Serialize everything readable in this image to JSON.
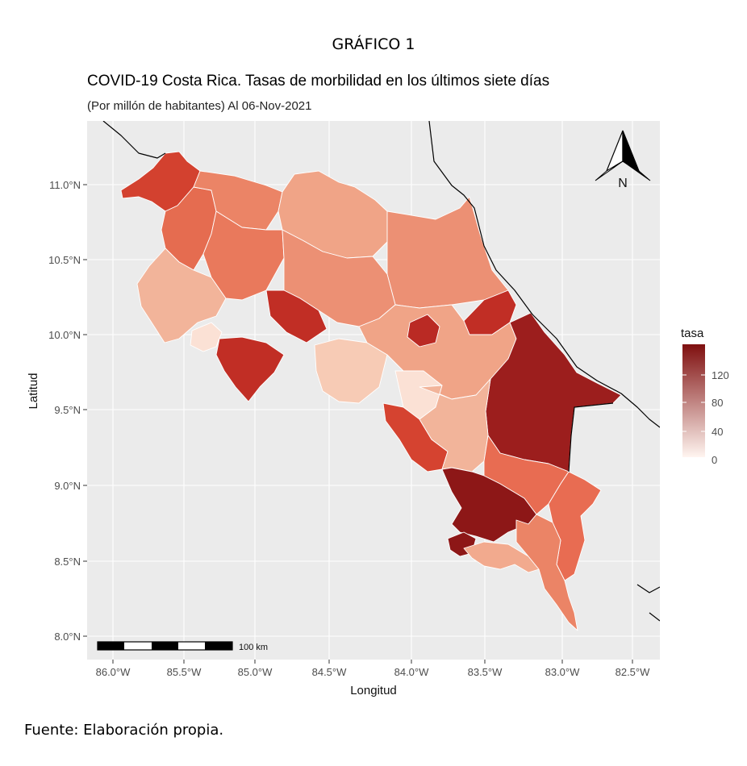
{
  "figure_label": "GRÁFICO 1",
  "title": "COVID-19 Costa Rica. Tasas de morbilidad en los últimos siete días",
  "subtitle": "(Por millón de habitantes) Al 06-Nov-2021",
  "source": "Fuente: Elaboración propia.",
  "map": {
    "x_axis_label": "Longitud",
    "y_axis_label": "Latitud",
    "x_ticks": [
      "86.0°W",
      "85.5°W",
      "85.0°W",
      "84.5°W",
      "84.0°W",
      "83.5°W",
      "83.0°W",
      "82.5°W"
    ],
    "y_ticks": [
      "11.0°N",
      "10.5°N",
      "10.0°N",
      "9.5°N",
      "9.0°N",
      "8.5°N",
      "8.0°N"
    ],
    "x_range_deg_w": [
      86.2,
      82.4
    ],
    "y_range_deg_n": [
      7.9,
      11.4
    ],
    "north_arrow_label": "N",
    "scale_bar_label": "100 km",
    "grid": true,
    "colors": {
      "panel_background": "#ebebeb",
      "grid_line": "#ffffff",
      "legend_low": "#fff5f0",
      "legend_high": "#7f0f0f",
      "shape_outline": "#ffffff",
      "border_outline": "#000000"
    },
    "legend": {
      "title": "tasa",
      "ticks": [
        "120",
        "80",
        "40",
        "0"
      ],
      "placement": "right"
    },
    "regions": [
      {
        "name": "",
        "fill": "#d3412f"
      },
      {
        "name": "",
        "fill": "#e56c50"
      },
      {
        "name": "",
        "fill": "#eb8466"
      },
      {
        "name": "",
        "fill": "#f0a487"
      },
      {
        "name": "",
        "fill": "#f2b49a"
      },
      {
        "name": "",
        "fill": "#e9795c"
      },
      {
        "name": "",
        "fill": "#ec9074"
      },
      {
        "name": "",
        "fill": "#c12e25"
      },
      {
        "name": "",
        "fill": "#fbe1d5"
      },
      {
        "name": "",
        "fill": "#f7cbb5"
      },
      {
        "name": "",
        "fill": "#ba2a24"
      },
      {
        "name": "",
        "fill": "#9c1e1d"
      },
      {
        "name": "",
        "fill": "#d54330"
      },
      {
        "name": "",
        "fill": "#e86c52"
      },
      {
        "name": "",
        "fill": "#8d1717"
      },
      {
        "name": "",
        "fill": "#f2aa8e"
      }
    ]
  }
}
